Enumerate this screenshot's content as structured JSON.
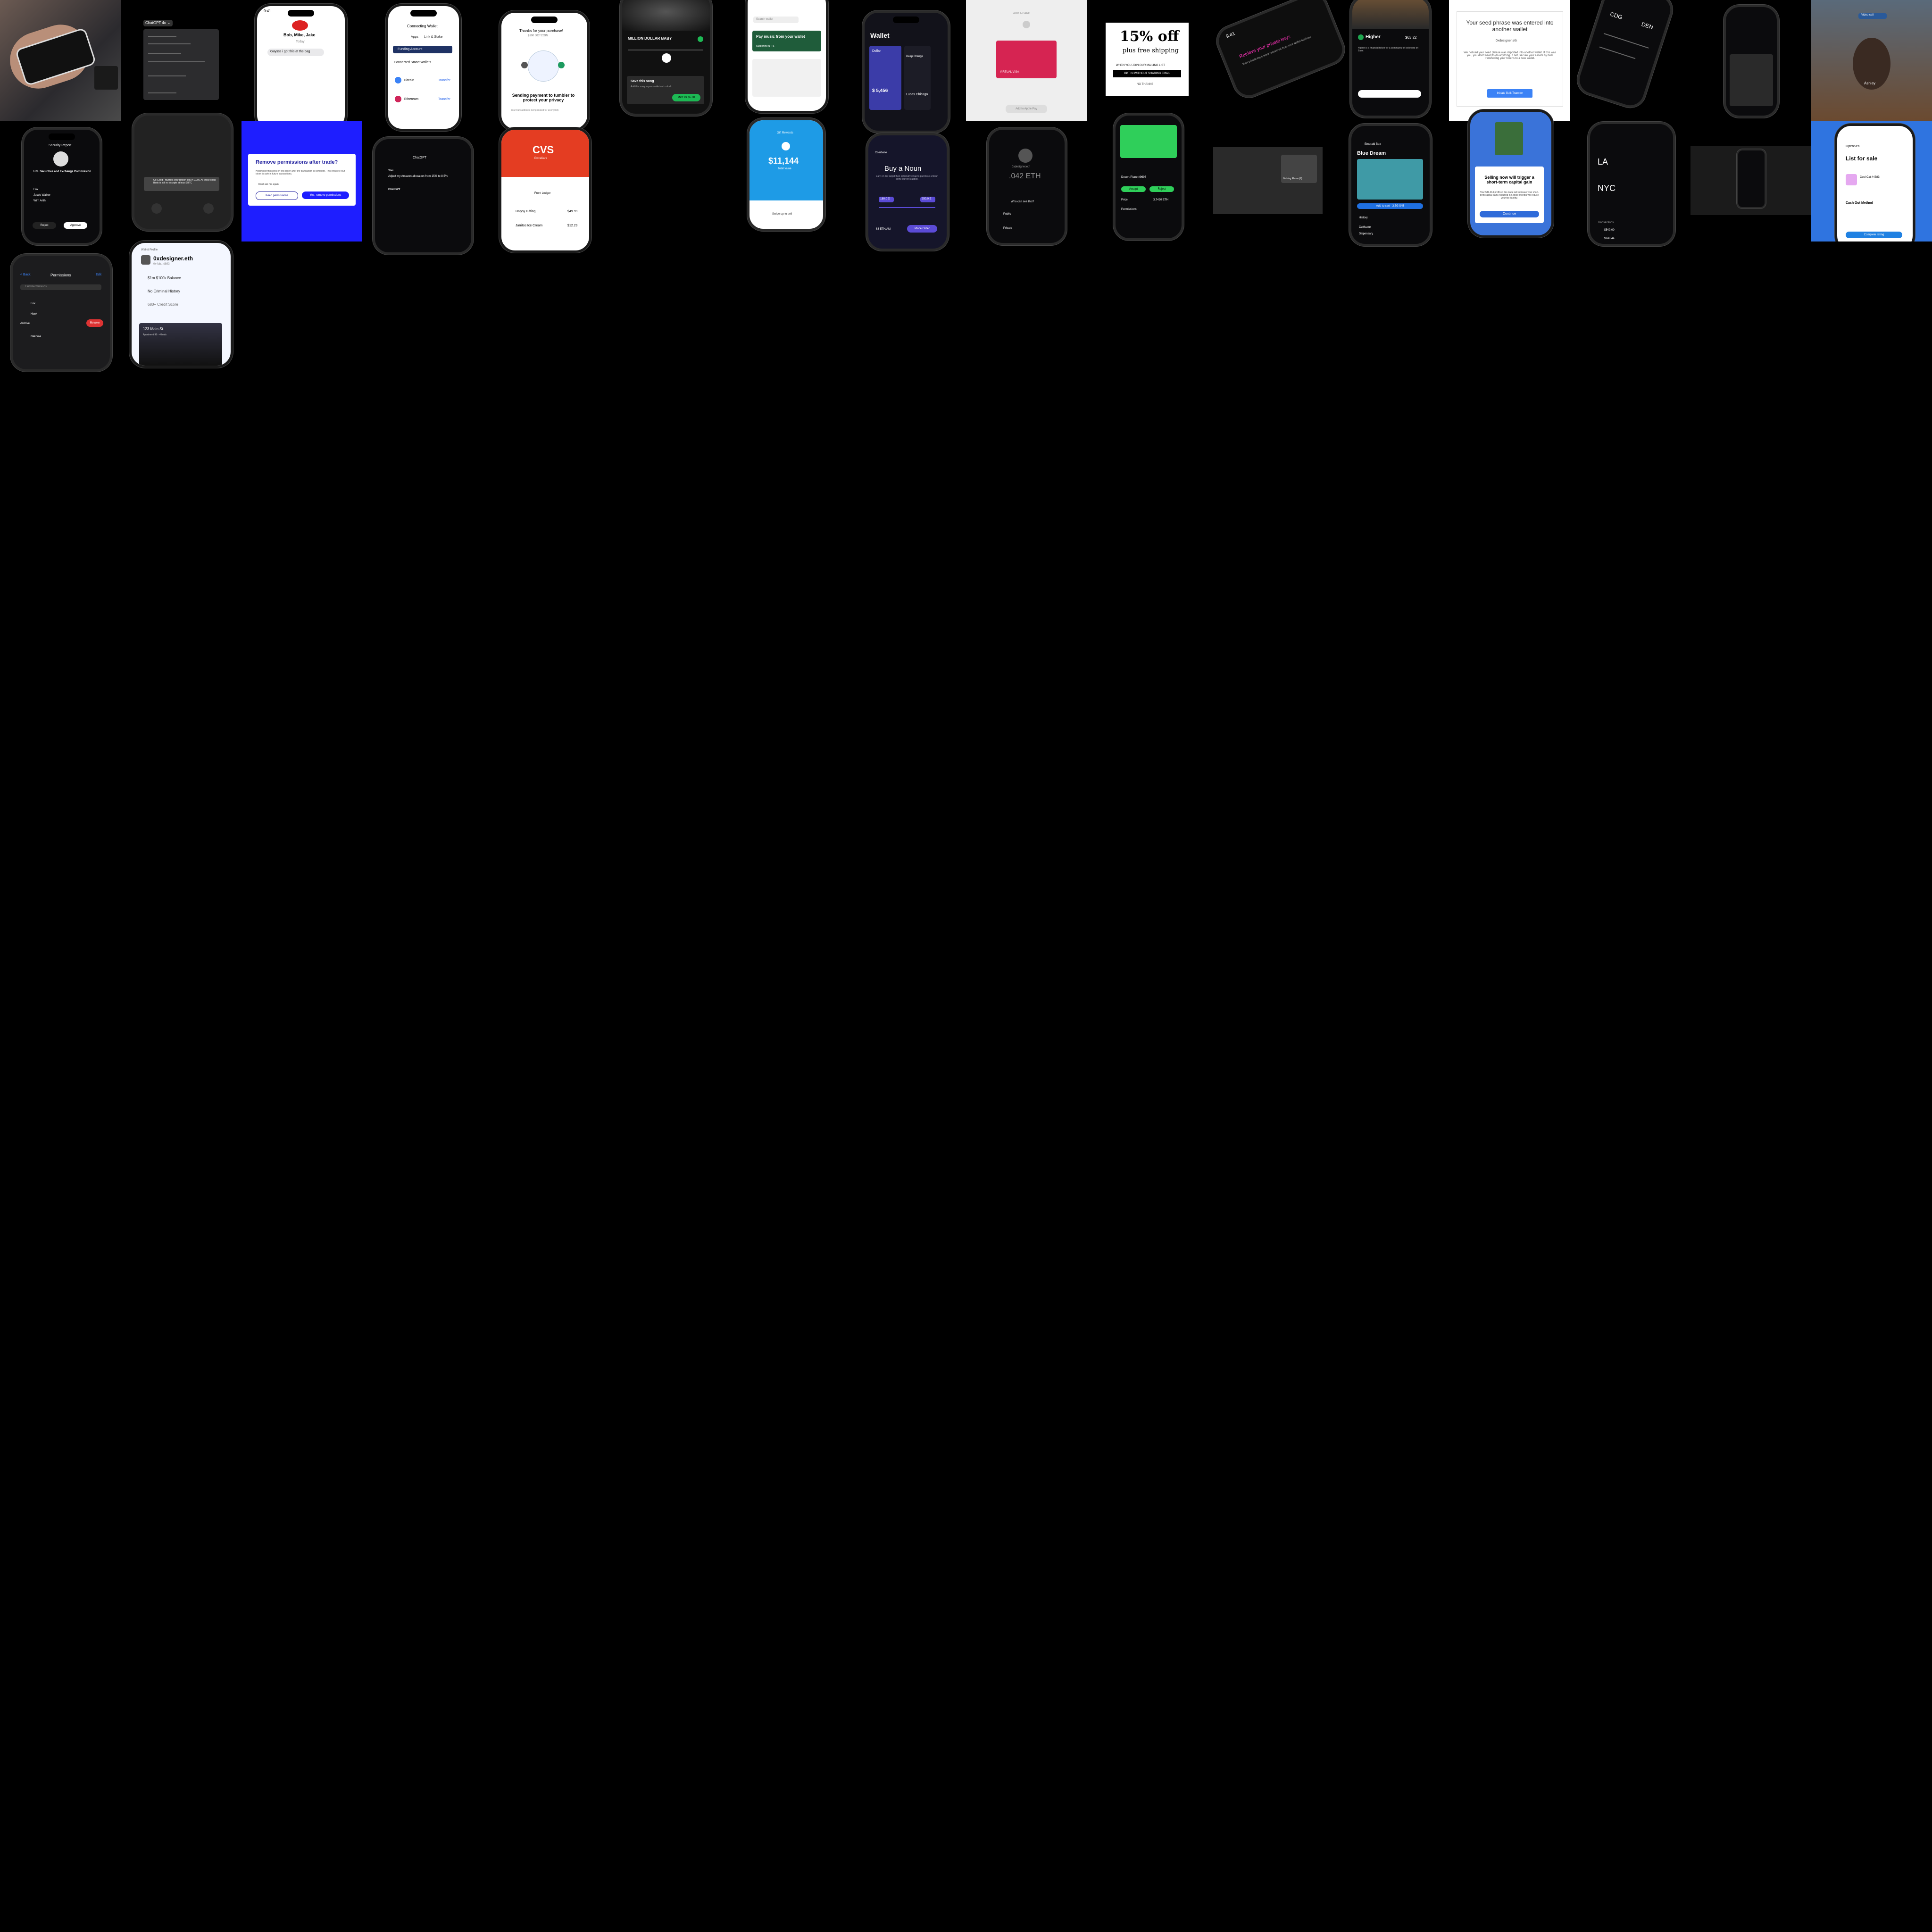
{
  "status_time": "9:41",
  "t_chatgpt": {
    "menu": "ChatGPT 4o ⌄"
  },
  "t_chat": {
    "names": "Bob, Mike, Jake",
    "today": "Today",
    "msg": "Guysss i got this at the bag"
  },
  "t_wallet_pick": {
    "title": "Connecting Wallet",
    "tab1": "Apps",
    "tab2": "Link & Stake",
    "opt": "Funding Account",
    "section": "Connected Smart Wallets",
    "w1": "Bitcoin",
    "w2": "Ethereum",
    "btn": "Transfer"
  },
  "t_tumblr": {
    "title": "Thanks for your purchase!",
    "amount": "$100 DOTCOIN",
    "heading": "Sending payment to tumbler to protect your privacy",
    "sub": "Your transaction is being routed for anonymity"
  },
  "t_music": {
    "track": "MILLION DOLLAR BABY",
    "artist": "Tommy Richman",
    "card_title": "Save this song",
    "card_btn": "Mint for $5.00",
    "card_sub": "Add this song to your wallet and unlock"
  },
  "t_shop": {
    "search": "Search wallet",
    "promo": "Pay music from your wallet",
    "promo_sub": "Supporting NFTS"
  },
  "t_wallet": {
    "title": "Wallet",
    "card1": "Dollar",
    "amount": "$ 5,456",
    "card2": "Deep Orange",
    "label": "Lucas Chicago"
  },
  "t_card": {
    "head": "ADD A CARD",
    "card": "VIRTUAL VISA",
    "btn": "Add to Apple Pay"
  },
  "t_promo": {
    "big": "15% off",
    "sub": "plus free shipping",
    "line": "WHEN YOU JOIN OUR MAILING LIST",
    "btn": "OPT IN WITHOUT SHARING EMAIL",
    "no": "NO THANKS"
  },
  "t_keys": {
    "title": "Retrieve your private keys",
    "body": "Your private keys were recovered from your wallet backups."
  },
  "t_higher": {
    "name": "Higher",
    "price": "$63.22",
    "desc": "Higher is a financial token for a community of believers on Base."
  },
  "t_seed": {
    "title": "Your seed phrase was entered into another wallet",
    "ens": "0xdesigner.eth",
    "body": "We noticed your seed phrase was imported into another wallet. If this was you, you don't need to do anything. If not, secure your assets by bulk transferring your tokens to a new wallet.",
    "btn": "Initiate Bulk Transfer"
  },
  "t_flight": {
    "from": "CDG",
    "to": "DEN"
  },
  "t_blur": {
    "badge": "Video call",
    "name": "Ashley"
  },
  "t_sec": {
    "title": "Security Report",
    "sub": "U.S. Securities and Exchange Commission",
    "item1": "Fox",
    "item2": "Jacob Walker",
    "item3": "Wim Anth",
    "btn1": "Reject",
    "btn2": "Approve",
    "note": "Do you want to approve SEC Securities and Exchange Commission's access?"
  },
  "t_ios": {
    "body": "Go Good Froysters your Bitcoin buy in Guys. All these coins Bank is still no accepts at least 1BTC"
  },
  "t_perm": {
    "title": "Remove permissions after trade?",
    "body": "Holding permissions on this token after the transaction is complete. This ensures your token is safe in future transactions.",
    "check": "Don't ask me again",
    "btn1": "Keep permissions",
    "btn2": "Yes, remove permissions"
  },
  "t_chat2": {
    "head": "ChatGPT",
    "user": "You",
    "q": "Adjust my Amazon allocation from 15% to 8.5%",
    "bot": "ChatGPT"
  },
  "t_cvs": {
    "logo": "CVS",
    "rx": "ExtraCare",
    "store": "Front Ledger",
    "i1": "Happy Gifting",
    "p1": "$49.99",
    "i2": "Jarritos Ice Cream",
    "p2": "$12.29"
  },
  "t_bal": {
    "label": "Gift Rewards",
    "amount": "$11,144",
    "sub": "Total value",
    "btn": "Swipe up to sell"
  },
  "t_noun": {
    "brand": "Coinbase",
    "title": "Buy a Noun",
    "sub": "Earn on the target then optionally swap to purchase a Noun at the current auction.",
    "v1": "180.0 Ξ",
    "v2": "250.0 Ξ",
    "price": "63 ETH/AM",
    "btn": "Place Order"
  },
  "t_eth": {
    "name": "0xdesigner.eth",
    "bal": ".042 ETH",
    "label": "Who can see this?",
    "o1": "Public",
    "o2": "Private"
  },
  "t_nft": {
    "name": "Desert Plane #9693",
    "btn1": "Accept",
    "btn2": "Reject",
    "k1": "Price",
    "v1": "3.7420 ETH",
    "sec": "Permissions"
  },
  "t_desktop": {
    "label": "Nothing Phone (2)"
  },
  "t_dream": {
    "brand": "Emerald Box",
    "title": "Blue Dream",
    "btn": "Add to cart · 3.5G $45",
    "row1": "History",
    "row2": "Cultivator",
    "row3": "Dispensary"
  },
  "t_gain": {
    "title": "Selling now will trigger a short-term capital gain",
    "body": "Your $43,014 profit on this trade will increase your short-term capital gains resulting in 6 more months will reduce your tax liability.",
    "btn": "Continue"
  },
  "t_la": {
    "a": "LA",
    "b": "NYC",
    "section": "Transactions",
    "r1": "$549.00",
    "r2": "$248.44"
  },
  "t_list": {
    "brand": "OpenSea",
    "title": "List for sale",
    "item": "Cool Cat #4383",
    "price": "Price",
    "method": "Cash Out Method",
    "btn": "Complete listing"
  },
  "t_perms": {
    "back": "< Back",
    "title": "Permissions",
    "edit": "Edit",
    "search": "Find Permissions",
    "i1": "Fox",
    "i2": "Hank",
    "sec": "Archive",
    "i3": "Nakoma",
    "btn": "Revoke"
  },
  "t_id": {
    "tag": "Wallet Profile",
    "name": "0xdesigner.eth",
    "handle": "0x4ab...d893",
    "r1": "$1m $100k Balance",
    "r2": "No Criminal History",
    "r3": "680+ Credit Score",
    "addr": "123 Main St.",
    "addr_sub": "Apartment 9B · 4 beds"
  }
}
